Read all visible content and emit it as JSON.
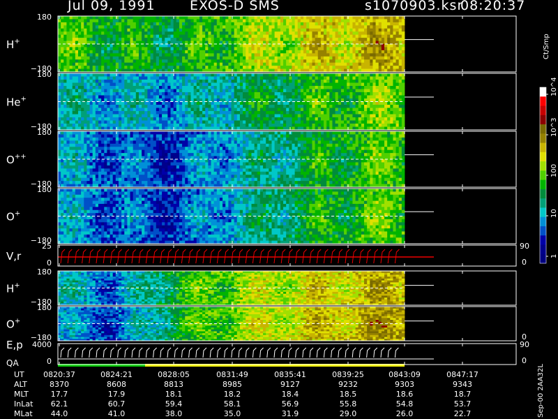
{
  "header": {
    "date": "Jul 09, 1991",
    "instrument": "EXOS-D SMS",
    "file": "s1070903.ksr",
    "time": "08:20:37"
  },
  "colorbar": {
    "unit": "Ct/Smp",
    "tick_labels": [
      "1",
      "10",
      "100",
      "10^3",
      "10^4"
    ],
    "colors": [
      "#000080",
      "#00008c",
      "#0000a8",
      "#0050c8",
      "#0090d8",
      "#00c8c8",
      "#00a078",
      "#008c3c",
      "#00b400",
      "#50d000",
      "#a0e000",
      "#e0e000",
      "#c8b400",
      "#968200",
      "#7a6a00",
      "#8c0000",
      "#c80000",
      "#ff0000",
      "#ffffff"
    ]
  },
  "panels": [
    {
      "label": "H",
      "sup": "+",
      "ytop": "180",
      "ybot": "−180",
      "kind": "pitch",
      "id": "h1"
    },
    {
      "label": "He",
      "sup": "+",
      "ytop": "180",
      "ybot": "−180",
      "kind": "pitch",
      "id": "he"
    },
    {
      "label": "O",
      "sup": "++",
      "ytop": "180",
      "ybot": "−180",
      "kind": "pitch",
      "id": "opp"
    },
    {
      "label": "O",
      "sup": "+",
      "ytop": "180",
      "ybot": "−180",
      "kind": "pitch",
      "id": "o1"
    },
    {
      "label": "V,r",
      "sup": "",
      "ytop": "25",
      "ybot": "0",
      "kind": "line",
      "id": "vr",
      "right_top": "90",
      "right_bot": "0"
    },
    {
      "label": "H",
      "sup": "+",
      "ytop": "180",
      "ybot": "−180",
      "kind": "pitch",
      "id": "h2"
    },
    {
      "label": "O",
      "sup": "+",
      "ytop": "180",
      "ybot": "−180",
      "kind": "pitch",
      "id": "o2",
      "right_bot": "0"
    },
    {
      "label": "E,p",
      "sup": "",
      "ytop": "4000",
      "ybot": "0",
      "kind": "ep",
      "id": "ep",
      "right_top": "90",
      "right_bot": "0"
    }
  ],
  "qa_label": "QA",
  "table": {
    "rows": [
      {
        "label": "UT",
        "values": [
          "0820:37",
          "0824:21",
          "0828:05",
          "0831:49",
          "0835:41",
          "0839:25",
          "0843:09",
          "0847:17"
        ]
      },
      {
        "label": "ALT",
        "values": [
          "8370",
          "8608",
          "8813",
          "8985",
          "9127",
          "9232",
          "9303",
          "9343"
        ]
      },
      {
        "label": "MLT",
        "values": [
          "17.7",
          "17.9",
          "18.1",
          "18.2",
          "18.4",
          "18.5",
          "18.6",
          "18.7"
        ]
      },
      {
        "label": "InLat",
        "values": [
          "62.1",
          "60.7",
          "59.4",
          "58.1",
          "56.9",
          "55.8",
          "54.8",
          "53.7"
        ]
      },
      {
        "label": "MLat",
        "values": [
          "44.0",
          "41.0",
          "38.0",
          "35.0",
          "31.9",
          "29.0",
          "26.0",
          "22.7"
        ]
      }
    ]
  },
  "footer": "Sep-00 2AA32L",
  "chart_data": {
    "type": "heatmap",
    "title": "Jul 09, 1991  EXOS-D SMS",
    "x": [
      "0820:37",
      "0824:21",
      "0828:05",
      "0831:49",
      "0835:41",
      "0839:25",
      "0843:09",
      "0847:17"
    ],
    "xlabel": "UT",
    "ylim": [
      -180,
      180
    ],
    "scale": "log",
    "series": [
      {
        "name": "H+",
        "level_by_time": [
          2.0,
          1.8,
          1.7,
          2.1,
          2.5,
          2.7,
          2.9
        ]
      },
      {
        "name": "He+",
        "level_by_time": [
          1.2,
          1.1,
          1.0,
          1.4,
          1.7,
          2.0,
          2.2
        ]
      },
      {
        "name": "O++",
        "level_by_time": [
          1.0,
          0.8,
          0.6,
          1.1,
          1.5,
          1.9,
          2.1
        ]
      },
      {
        "name": "O+",
        "level_by_time": [
          1.0,
          0.8,
          0.6,
          1.1,
          1.6,
          1.9,
          2.1
        ]
      },
      {
        "name": "V,r",
        "ylim": [
          0,
          25
        ]
      },
      {
        "name": "H+",
        "level_by_time": [
          1.2,
          0.8,
          1.8,
          2.2,
          2.5,
          2.7,
          2.9
        ]
      },
      {
        "name": "O+",
        "level_by_time": [
          1.0,
          0.7,
          1.7,
          2.2,
          2.6,
          2.8,
          3.0
        ]
      },
      {
        "name": "E,p",
        "ylim": [
          0,
          4000
        ]
      }
    ],
    "data_end": "0843:09",
    "colorbar": {
      "label": "Ct/Smp",
      "ticks": [
        "1",
        "10",
        "100",
        "10^3",
        "10^4"
      ]
    }
  }
}
